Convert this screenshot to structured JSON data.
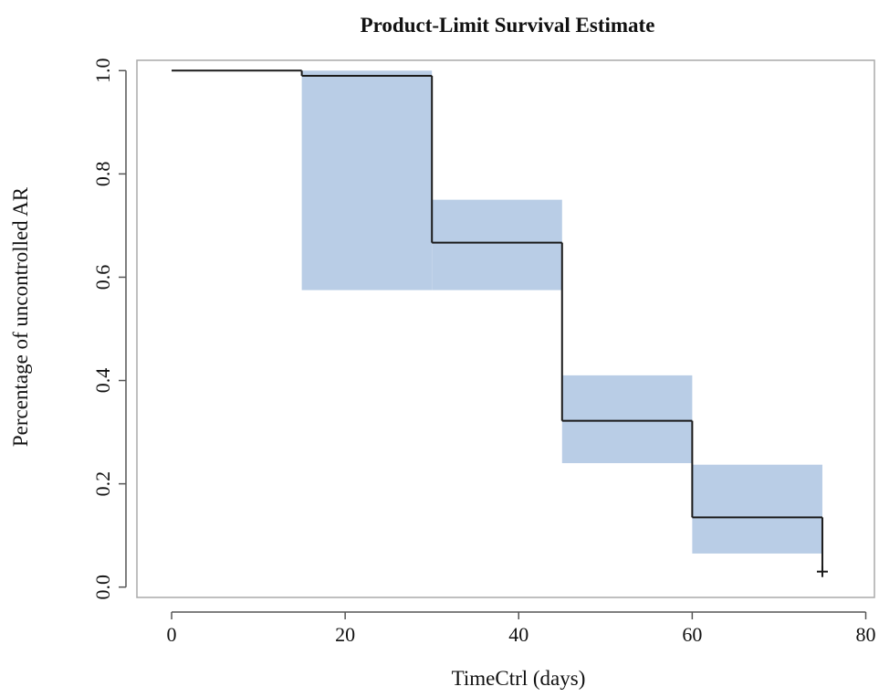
{
  "chart_data": {
    "type": "line",
    "title": "Product-Limit Survival Estimate",
    "xlabel": "TimeCtrl (days)",
    "ylabel": "Percentage of uncontrolled AR",
    "xlim": [
      -4,
      81
    ],
    "ylim": [
      -0.02,
      1.02
    ],
    "x_ticks": [
      0,
      20,
      40,
      60,
      80
    ],
    "x_tick_labels": [
      "0",
      "20",
      "40",
      "60",
      "80"
    ],
    "y_ticks": [
      0.0,
      0.2,
      0.4,
      0.6,
      0.8,
      1.0
    ],
    "y_tick_labels": [
      "0.0",
      "0.2",
      "0.4",
      "0.6",
      "0.8",
      "1.0"
    ],
    "grid": false,
    "survival_steps": [
      {
        "x_start": 0,
        "x_end": 15,
        "survival": 1.0
      },
      {
        "x_start": 15,
        "x_end": 30,
        "survival": 0.99
      },
      {
        "x_start": 30,
        "x_end": 45,
        "survival": 0.667
      },
      {
        "x_start": 45,
        "x_end": 60,
        "survival": 0.322
      },
      {
        "x_start": 60,
        "x_end": 75,
        "survival": 0.135
      }
    ],
    "confidence_band": [
      {
        "x_start": 15,
        "x_end": 30,
        "lower": 0.575,
        "upper": 1.0
      },
      {
        "x_start": 30,
        "x_end": 45,
        "lower": 0.575,
        "upper": 0.75
      },
      {
        "x_start": 45,
        "x_end": 60,
        "lower": 0.24,
        "upper": 0.41
      },
      {
        "x_start": 60,
        "x_end": 75,
        "lower": 0.065,
        "upper": 0.237
      }
    ],
    "censored": [
      {
        "x": 75,
        "y": 0.03
      }
    ]
  },
  "colors": {
    "band": "#b9cde6",
    "line": "#1a1a1a",
    "axis": "#555555",
    "frame": "#aaaaaa"
  }
}
